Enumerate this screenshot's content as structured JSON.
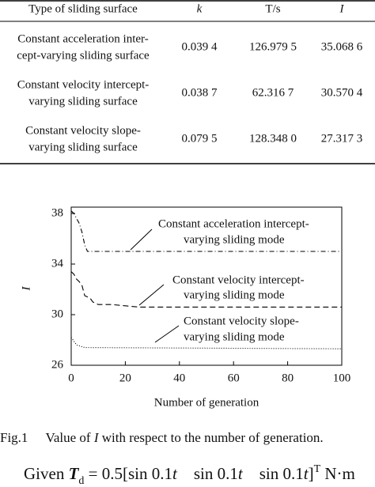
{
  "table": {
    "header": [
      "Type of sliding surface",
      "k",
      "T/s",
      "I"
    ],
    "rows": [
      [
        [
          "Constant acceleration inter-",
          "cept-varying sliding surface"
        ],
        "0.039 4",
        "126.979 5",
        "35.068 6"
      ],
      [
        [
          "Constant velocity intercept-",
          "varying sliding surface"
        ],
        "0.038 7",
        "62.316 7",
        "30.570 4"
      ],
      [
        [
          "Constant velocity slope-",
          "varying sliding surface"
        ],
        "0.079 5",
        "128.348 0",
        "27.317 3"
      ]
    ]
  },
  "chart_data": {
    "type": "line",
    "x_label": "Number of generation",
    "y_label": "I",
    "xlim": [
      0,
      100
    ],
    "xticks": [
      0,
      20,
      40,
      60,
      80,
      100
    ],
    "ylim": [
      26,
      38.5
    ],
    "yticks": [
      26,
      30,
      34,
      38
    ],
    "series": [
      {
        "color": "#000000",
        "dash": "6 3 1 3",
        "x": [
          0,
          1,
          2,
          3,
          4,
          5,
          6,
          100
        ],
        "values": [
          38.2,
          38,
          37.6,
          37.2,
          36.5,
          35.5,
          35,
          35
        ]
      },
      {
        "color": "#000000",
        "dash": "7 4",
        "x": [
          0,
          1,
          2,
          3,
          4,
          5,
          7,
          8,
          10,
          15,
          20,
          25,
          100
        ],
        "values": [
          33.4,
          33.2,
          32.8,
          32.6,
          32.3,
          31.5,
          31.3,
          31,
          30.8,
          30.8,
          30.7,
          30.6,
          30.6
        ]
      },
      {
        "color": "#000000",
        "dash": "1 2",
        "x": [
          0,
          1,
          2,
          5,
          100
        ],
        "values": [
          28.2,
          27.9,
          27.6,
          27.4,
          27.3
        ]
      }
    ],
    "annotations": [
      [
        "Constant acceleration intercept-",
        "varying sliding mode"
      ],
      [
        "Constant velocity intercept-",
        "varying sliding mode"
      ],
      [
        "Constant velocity slope-",
        "varying sliding mode"
      ]
    ]
  },
  "caption": {
    "label": "Fig.1",
    "text_before": "Value of ",
    "symbol": "I",
    "text_after": " with respect to the number of generation."
  },
  "formula": [
    "Given ",
    "T",
    "d",
    " = 0.5[sin 0.1",
    "t",
    "    sin 0.1",
    "t",
    "    sin 0.1",
    "t",
    "]",
    "T",
    " N·m"
  ]
}
